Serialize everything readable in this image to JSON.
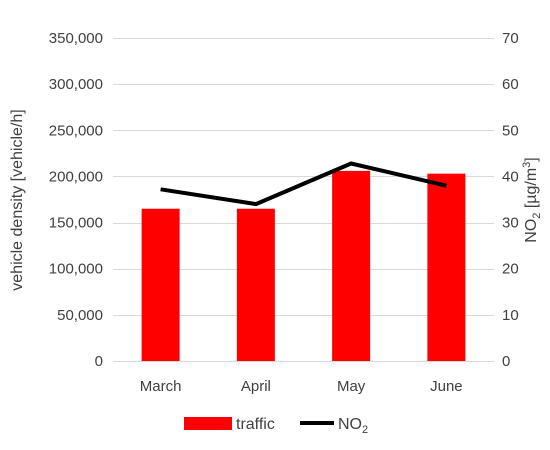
{
  "chart_data": {
    "type": "bar",
    "categories": [
      "March",
      "April",
      "May",
      "June"
    ],
    "series": [
      {
        "name": "traffic",
        "type": "bar",
        "axis": "left",
        "color": "#ff0000",
        "values": [
          165000,
          165000,
          206000,
          203000
        ]
      },
      {
        "name": "NO2",
        "type": "line",
        "axis": "right",
        "color": "#000000",
        "values": [
          37.2,
          34.0,
          42.8,
          38.0
        ]
      }
    ],
    "y_left": {
      "label": "vehicle density [vehicle/h]",
      "ylim": [
        0,
        350000
      ],
      "ticks": [
        0,
        50000,
        100000,
        150000,
        200000,
        250000,
        300000,
        350000
      ],
      "tick_labels": [
        "0",
        "50,000",
        "100,000",
        "150,000",
        "200,000",
        "250,000",
        "300,000",
        "350,000"
      ]
    },
    "y_right": {
      "label_main": "NO",
      "label_sub": "2",
      "label_unit": " [µg/m",
      "label_sup": "3",
      "label_close": "]",
      "ylim": [
        0,
        70
      ],
      "ticks": [
        0,
        10,
        20,
        30,
        40,
        50,
        60,
        70
      ],
      "tick_labels": [
        "0",
        "10",
        "20",
        "30",
        "40",
        "50",
        "60",
        "70"
      ]
    },
    "grid": true,
    "legend": {
      "position": "bottom",
      "entries": [
        {
          "label": "traffic",
          "marker": "bar",
          "color": "#ff0000"
        },
        {
          "label_main": "NO",
          "label_sub": "2",
          "marker": "line",
          "color": "#000000"
        }
      ]
    },
    "colors": {
      "gridline": "#d9d9d9",
      "text": "#404040"
    }
  }
}
